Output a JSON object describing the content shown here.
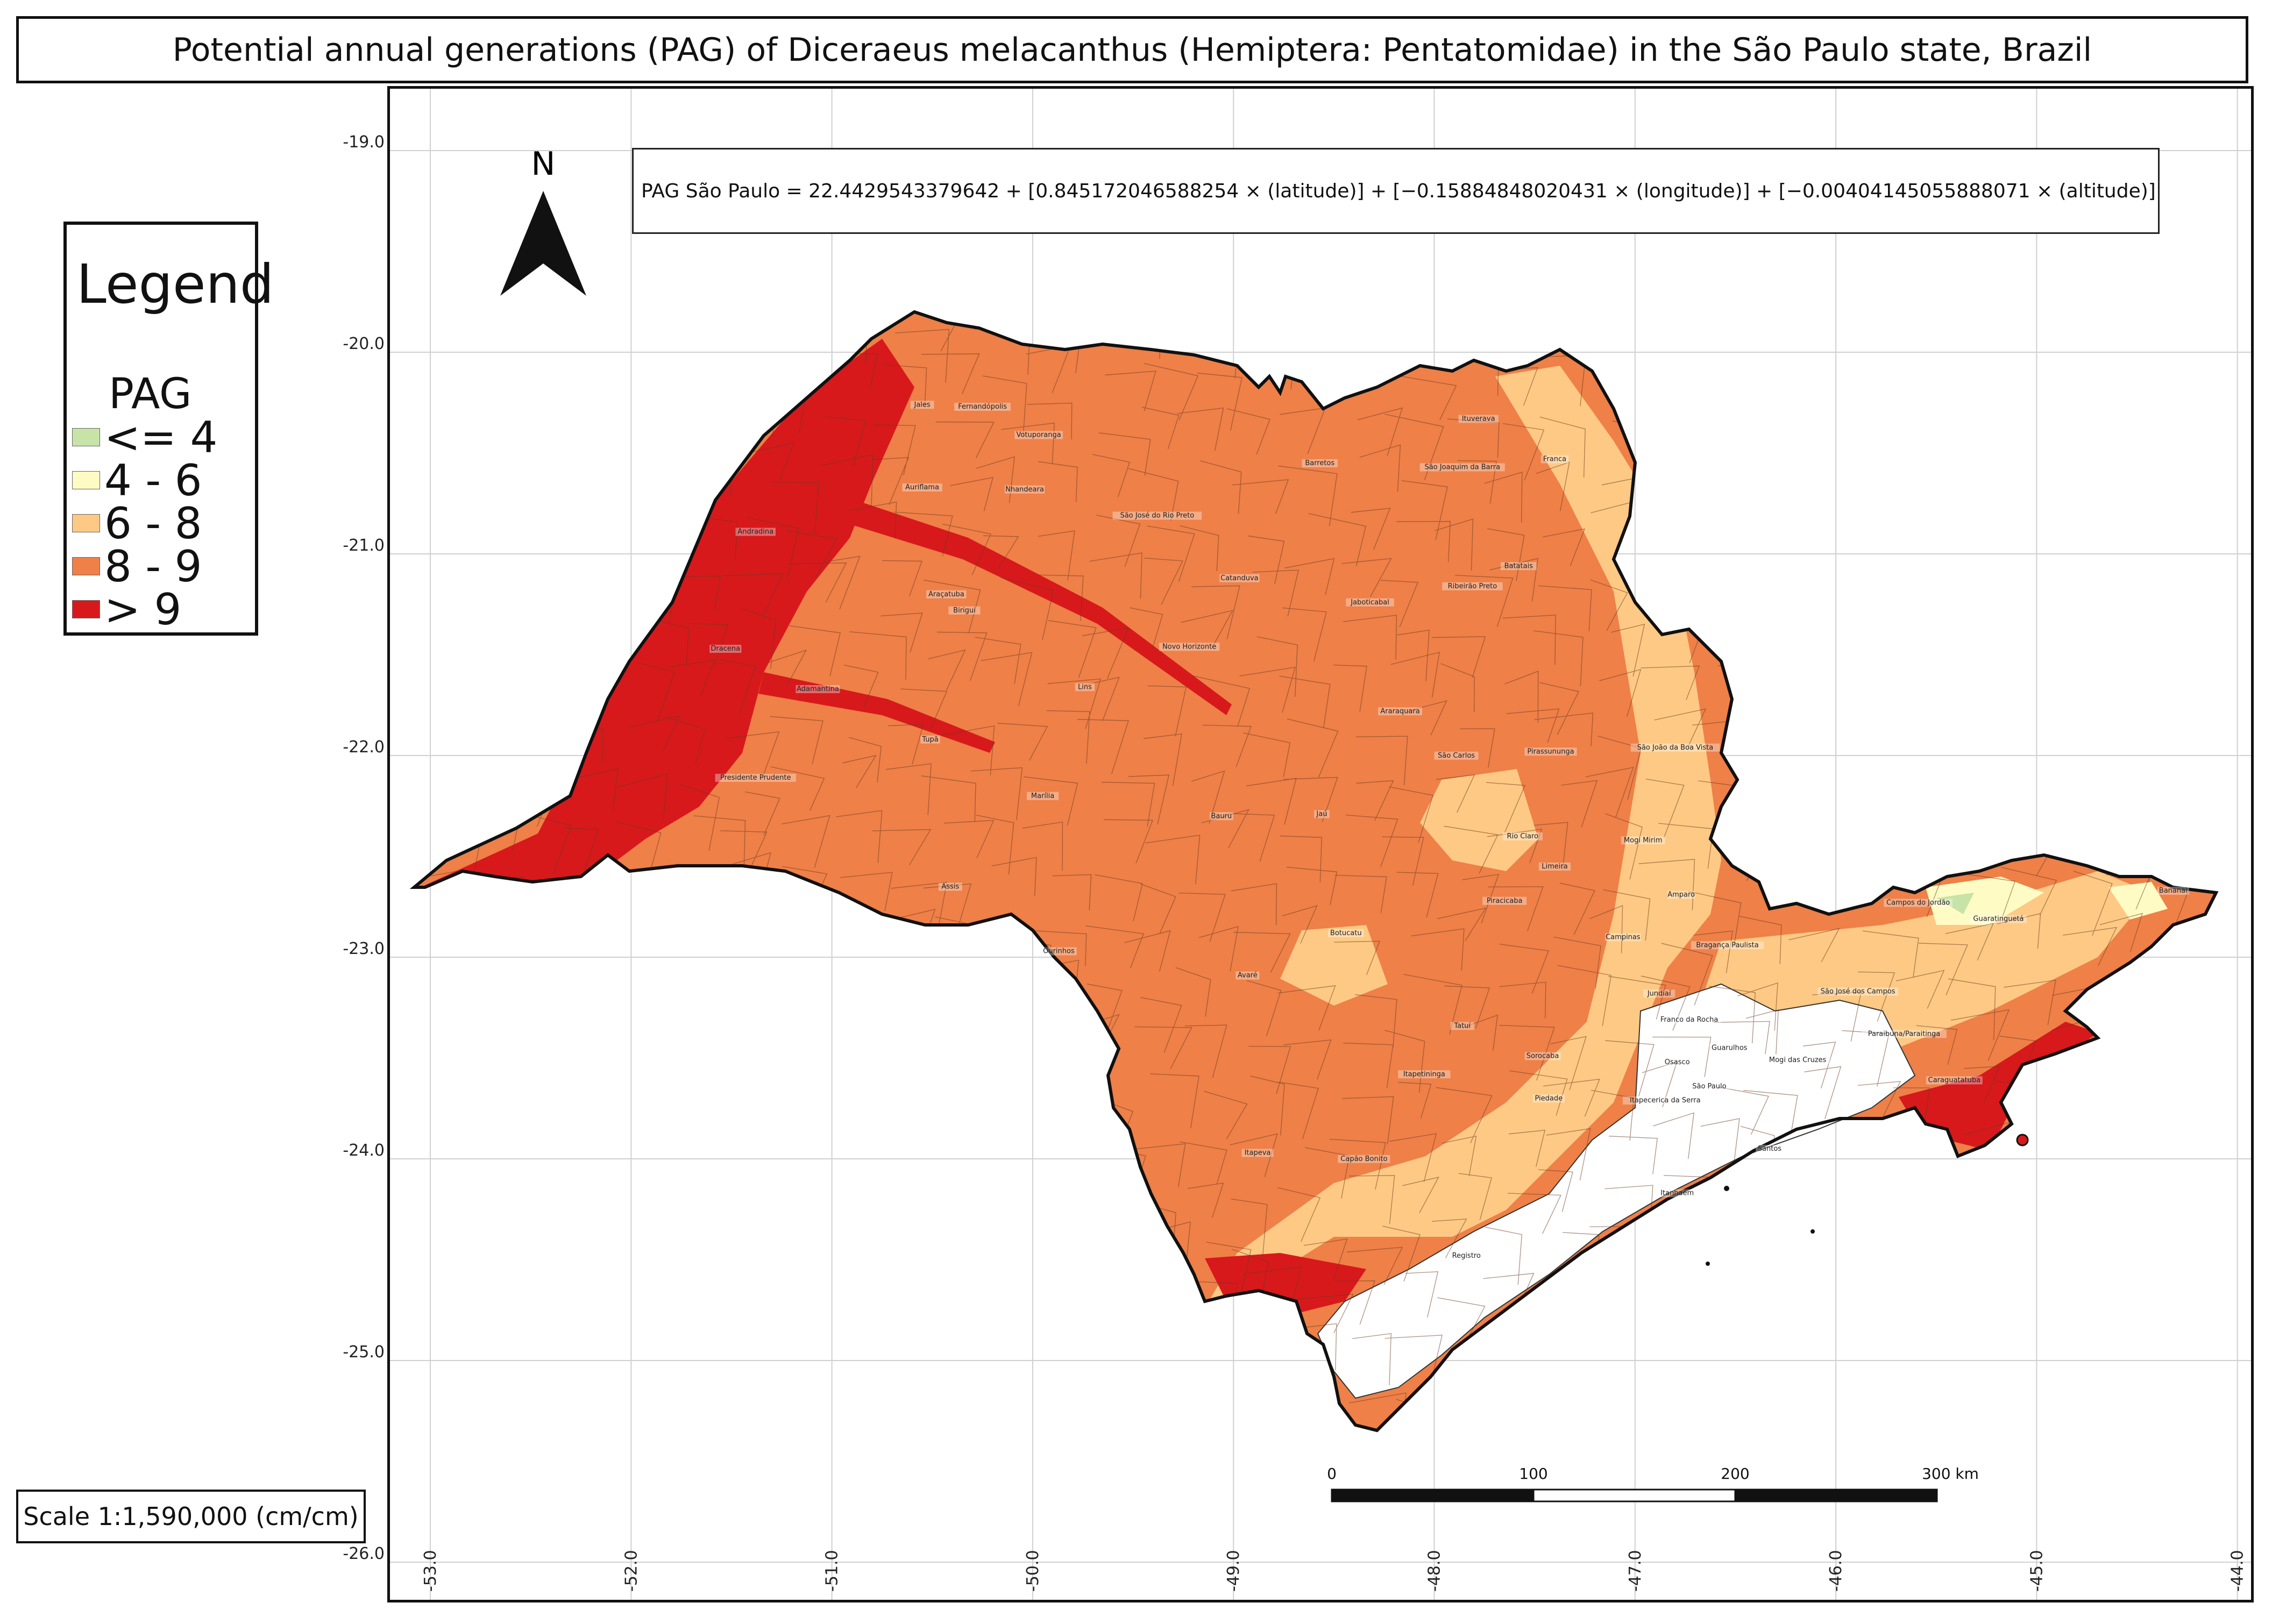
{
  "title": "Potential annual generations (PAG) of Diceraeus melacanthus (Hemiptera: Pentatomidae) in the São Paulo state, Brazil",
  "equation": "PAG São Paulo = 22.4429543379642 + [0.845172046588254 × (latitude)] + [−0.15884848020431 × (longitude)] + [−0.00404145055888071 × (altitude)]",
  "north_arrow": {
    "label": "N",
    "icon": "north-arrow-icon"
  },
  "legend": {
    "title": "Legend",
    "variable": "PAG",
    "classes": [
      {
        "label": "<= 4",
        "color": "#c7e3a8"
      },
      {
        "label": "4 - 6",
        "color": "#fffbc4"
      },
      {
        "label": "6 - 8",
        "color": "#fdc984"
      },
      {
        "label": "8 - 9",
        "color": "#ee8048"
      },
      {
        "label": "> 9",
        "color": "#d7191c"
      }
    ]
  },
  "scale_text": "Scale 1:1,590,000 (cm/cm)",
  "scalebar": {
    "ticks": [
      "0",
      "100",
      "200",
      "300 km"
    ]
  },
  "grid": {
    "latitudes": [
      "-19.0",
      "-20.0",
      "-21.0",
      "-22.0",
      "-23.0",
      "-24.0",
      "-25.0",
      "-26.0"
    ],
    "longitudes": [
      "-53.0",
      "-52.0",
      "-51.0",
      "-50.0",
      "-49.0",
      "-48.0",
      "-47.0",
      "-46.0",
      "-45.0",
      "-44.0"
    ]
  },
  "cities": [
    {
      "name": "Jales",
      "lon": -50.55,
      "lat": -20.27
    },
    {
      "name": "Fernandópolis",
      "lon": -50.25,
      "lat": -20.28
    },
    {
      "name": "Votuporanga",
      "lon": -49.97,
      "lat": -20.42
    },
    {
      "name": "Ituverava",
      "lon": -47.78,
      "lat": -20.34
    },
    {
      "name": "Franca",
      "lon": -47.4,
      "lat": -20.54
    },
    {
      "name": "Barretos",
      "lon": -48.57,
      "lat": -20.56
    },
    {
      "name": "São Joaquim da Barra",
      "lon": -47.86,
      "lat": -20.58
    },
    {
      "name": "Auriflama",
      "lon": -50.55,
      "lat": -20.68
    },
    {
      "name": "São José do Rio Preto",
      "lon": -49.38,
      "lat": -20.82
    },
    {
      "name": "Nhandeara",
      "lon": -50.04,
      "lat": -20.69
    },
    {
      "name": "Andradina",
      "lon": -51.38,
      "lat": -20.9
    },
    {
      "name": "Catanduva",
      "lon": -48.97,
      "lat": -21.13
    },
    {
      "name": "Jaboticabal",
      "lon": -48.32,
      "lat": -21.25
    },
    {
      "name": "Batatais",
      "lon": -47.58,
      "lat": -21.07
    },
    {
      "name": "Araçatuba",
      "lon": -50.43,
      "lat": -21.21
    },
    {
      "name": "Ribeirão Preto",
      "lon": -47.81,
      "lat": -21.17
    },
    {
      "name": "Birigui",
      "lon": -50.34,
      "lat": -21.29
    },
    {
      "name": "Novo Horizonte",
      "lon": -49.22,
      "lat": -21.47
    },
    {
      "name": "Dracena",
      "lon": -51.53,
      "lat": -21.48
    },
    {
      "name": "Lins",
      "lon": -49.74,
      "lat": -21.67
    },
    {
      "name": "Adamantina",
      "lon": -51.07,
      "lat": -21.68
    },
    {
      "name": "Araraquara",
      "lon": -48.17,
      "lat": -21.79
    },
    {
      "name": "São João da Boa Vista",
      "lon": -46.8,
      "lat": -21.97
    },
    {
      "name": "Tupã",
      "lon": -50.51,
      "lat": -21.93
    },
    {
      "name": "São Carlos",
      "lon": -47.89,
      "lat": -22.01
    },
    {
      "name": "Pirassununga",
      "lon": -47.42,
      "lat": -21.99
    },
    {
      "name": "Presidente Prudente",
      "lon": -51.38,
      "lat": -22.12
    },
    {
      "name": "Marília",
      "lon": -49.95,
      "lat": -22.21
    },
    {
      "name": "Bauru",
      "lon": -49.06,
      "lat": -22.31
    },
    {
      "name": "Jaú",
      "lon": -48.56,
      "lat": -22.3
    },
    {
      "name": "Rio Claro",
      "lon": -47.56,
      "lat": -22.41
    },
    {
      "name": "Limeira",
      "lon": -47.4,
      "lat": -22.56
    },
    {
      "name": "Mogi Mirim",
      "lon": -46.96,
      "lat": -22.43
    },
    {
      "name": "Assis",
      "lon": -50.41,
      "lat": -22.66
    },
    {
      "name": "Amparo",
      "lon": -46.77,
      "lat": -22.7
    },
    {
      "name": "Campos do Jordão",
      "lon": -45.59,
      "lat": -22.74
    },
    {
      "name": "Guaratinguetá",
      "lon": -45.19,
      "lat": -22.82
    },
    {
      "name": "Bananal",
      "lon": -44.32,
      "lat": -22.68
    },
    {
      "name": "Piracicaba",
      "lon": -47.65,
      "lat": -22.73
    },
    {
      "name": "Campinas",
      "lon": -47.06,
      "lat": -22.91
    },
    {
      "name": "Botucatu",
      "lon": -48.44,
      "lat": -22.89
    },
    {
      "name": "Bragança Paulista",
      "lon": -46.54,
      "lat": -22.95
    },
    {
      "name": "Ourinhos",
      "lon": -49.87,
      "lat": -22.98
    },
    {
      "name": "São José dos Campos",
      "lon": -45.89,
      "lat": -23.18
    },
    {
      "name": "Jundiaí",
      "lon": -46.88,
      "lat": -23.19
    },
    {
      "name": "Avaré",
      "lon": -48.93,
      "lat": -23.1
    },
    {
      "name": "Tatuí",
      "lon": -47.86,
      "lat": -23.35
    },
    {
      "name": "Paraibuna/Paraitinga",
      "lon": -45.66,
      "lat": -23.39
    },
    {
      "name": "Franco da Rocha",
      "lon": -46.73,
      "lat": -23.32
    },
    {
      "name": "Guarulhos",
      "lon": -46.53,
      "lat": -23.46
    },
    {
      "name": "Sorocaba",
      "lon": -47.46,
      "lat": -23.5
    },
    {
      "name": "Osasco",
      "lon": -46.79,
      "lat": -23.53
    },
    {
      "name": "Mogi das Cruzes",
      "lon": -46.19,
      "lat": -23.52
    },
    {
      "name": "Caraguatatuba",
      "lon": -45.41,
      "lat": -23.62
    },
    {
      "name": "Itapetininga",
      "lon": -48.05,
      "lat": -23.59
    },
    {
      "name": "São Paulo",
      "lon": -46.63,
      "lat": -23.65
    },
    {
      "name": "Itapecerica da Serra",
      "lon": -46.85,
      "lat": -23.72
    },
    {
      "name": "Santos",
      "lon": -46.33,
      "lat": -23.96
    },
    {
      "name": "Itapeva",
      "lon": -48.88,
      "lat": -23.98
    },
    {
      "name": "Piedade",
      "lon": -47.43,
      "lat": -23.71
    },
    {
      "name": "Itanhaém",
      "lon": -46.79,
      "lat": -24.18
    },
    {
      "name": "Capão Bonito",
      "lon": -48.35,
      "lat": -24.01
    },
    {
      "name": "Registro",
      "lon": -47.84,
      "lat": -24.49
    }
  ]
}
